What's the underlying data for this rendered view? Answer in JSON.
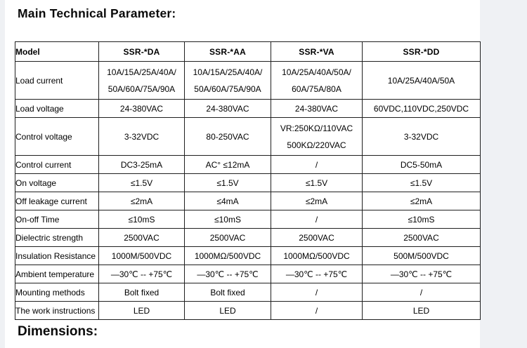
{
  "page": {
    "section_title": "Main Technical Parameter:",
    "dimensions_title": "Dimensions:"
  },
  "colors": {
    "page_background": "#eff1f4",
    "panel_background": "#ffffff",
    "table_border": "#1f1f1f",
    "text": "#000000"
  },
  "table": {
    "headers": [
      "Model",
      "SSR-*DA",
      "SSR-*AA",
      "SSR-*VA",
      "SSR-*DD"
    ],
    "rows": [
      {
        "label": "Load current",
        "values": [
          "10A/15A/25A/40A/\n50A/60A/75A/90A",
          "10A/15A/25A/40A/\n50A/60A/75A/90A",
          "10A/25A/40A/50A/\n60A/75A/80A",
          "10A/25A/40A/50A"
        ]
      },
      {
        "label": "Load voltage",
        "values": [
          "24-380VAC",
          "24-380VAC",
          "24-380VAC",
          "60VDC,110VDC,250VDC"
        ]
      },
      {
        "label": "Control voltage",
        "values": [
          "3-32VDC",
          "80-250VAC",
          "VR:250KΩ/110VAC\n500KΩ/220VAC",
          "3-32VDC"
        ]
      },
      {
        "label": "Control current",
        "values": [
          "DC3-25mA",
          "AC° ≤12mA",
          "/",
          "DC5-50mA"
        ]
      },
      {
        "label": "On voltage",
        "values": [
          "≤1.5V",
          "≤1.5V",
          "≤1.5V",
          "≤1.5V"
        ]
      },
      {
        "label": "Off leakage current",
        "values": [
          "≤2mA",
          "≤4mA",
          "≤2mA",
          "≤2mA"
        ]
      },
      {
        "label": "On-off Time",
        "values": [
          "≤10mS",
          "≤10mS",
          "/",
          "≤10mS"
        ]
      },
      {
        "label": "Dielectric strength",
        "values": [
          "2500VAC",
          "2500VAC",
          "2500VAC",
          "2500VAC"
        ]
      },
      {
        "label": "Insulation Resistance",
        "values": [
          "1000M/500VDC",
          "1000MΩ/500VDC",
          "1000MΩ/500VDC",
          "500M/500VDC"
        ]
      },
      {
        "label": "Ambient temperature",
        "values": [
          "—30℃ -- +75℃",
          "—30℃ -- +75℃",
          "—30℃ -- +75℃",
          "—30℃ -- +75℃"
        ]
      },
      {
        "label": "Mounting methods",
        "values": [
          "Bolt fixed",
          "Bolt fixed",
          "/",
          "/"
        ]
      },
      {
        "label": "The work instructions",
        "values": [
          "LED",
          "LED",
          "/",
          "LED"
        ]
      }
    ]
  }
}
